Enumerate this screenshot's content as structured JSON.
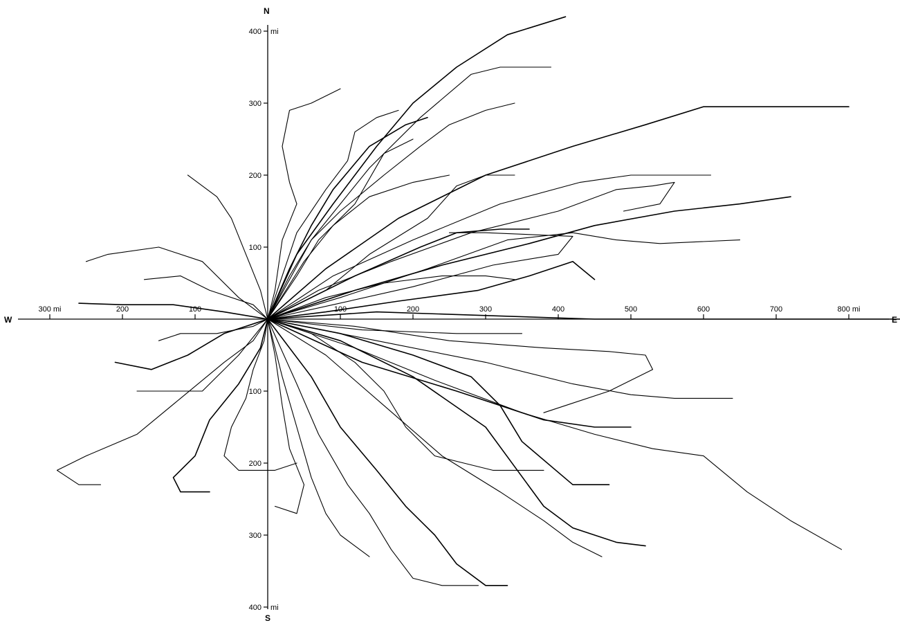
{
  "compass": {
    "north": "N",
    "south": "S",
    "west": "W",
    "east": "E"
  },
  "x_ticks": [
    {
      "value": -300,
      "label": "300 mi"
    },
    {
      "value": -200,
      "label": "200"
    },
    {
      "value": -100,
      "label": "100"
    },
    {
      "value": 100,
      "label": "100"
    },
    {
      "value": 200,
      "label": "200"
    },
    {
      "value": 300,
      "label": "300"
    },
    {
      "value": 400,
      "label": "400"
    },
    {
      "value": 500,
      "label": "500"
    },
    {
      "value": 600,
      "label": "600"
    },
    {
      "value": 700,
      "label": "700"
    },
    {
      "value": 800,
      "label": "800 mi"
    }
  ],
  "y_ticks": [
    {
      "value": 400,
      "label": "400",
      "unit": "mi"
    },
    {
      "value": 300,
      "label": "300",
      "unit": ""
    },
    {
      "value": 200,
      "label": "200",
      "unit": ""
    },
    {
      "value": 100,
      "label": "100",
      "unit": ""
    },
    {
      "value": -100,
      "label": "100",
      "unit": ""
    },
    {
      "value": -200,
      "label": "200",
      "unit": ""
    },
    {
      "value": -300,
      "label": "300",
      "unit": ""
    },
    {
      "value": -400,
      "label": "400",
      "unit": "mi"
    }
  ],
  "colors": {
    "ink": "#000000",
    "background": "#ffffff"
  },
  "tracks": [
    [
      [
        0,
        0
      ],
      [
        40,
        90
      ],
      [
        90,
        160
      ],
      [
        150,
        240
      ],
      [
        200,
        300
      ],
      [
        260,
        350
      ],
      [
        330,
        395
      ],
      [
        410,
        420
      ]
    ],
    [
      [
        0,
        0
      ],
      [
        60,
        110
      ],
      [
        140,
        210
      ],
      [
        210,
        280
      ],
      [
        280,
        340
      ],
      [
        320,
        350
      ],
      [
        390,
        350
      ]
    ],
    [
      [
        0,
        0
      ],
      [
        30,
        60
      ],
      [
        60,
        110
      ],
      [
        100,
        150
      ],
      [
        160,
        200
      ],
      [
        210,
        240
      ],
      [
        250,
        270
      ],
      [
        300,
        290
      ],
      [
        340,
        300
      ]
    ],
    [
      [
        0,
        0
      ],
      [
        80,
        70
      ],
      [
        180,
        140
      ],
      [
        300,
        200
      ],
      [
        420,
        240
      ],
      [
        520,
        270
      ],
      [
        600,
        295
      ],
      [
        700,
        295
      ],
      [
        800,
        295
      ]
    ],
    [
      [
        0,
        0
      ],
      [
        90,
        60
      ],
      [
        200,
        110
      ],
      [
        320,
        160
      ],
      [
        430,
        190
      ],
      [
        500,
        200
      ],
      [
        560,
        200
      ],
      [
        610,
        200
      ]
    ],
    [
      [
        0,
        0
      ],
      [
        70,
        40
      ],
      [
        170,
        80
      ],
      [
        280,
        120
      ],
      [
        400,
        150
      ],
      [
        480,
        180
      ],
      [
        530,
        185
      ],
      [
        560,
        190
      ],
      [
        540,
        160
      ],
      [
        490,
        150
      ]
    ],
    [
      [
        0,
        0
      ],
      [
        120,
        40
      ],
      [
        240,
        75
      ],
      [
        360,
        105
      ],
      [
        450,
        130
      ],
      [
        560,
        150
      ],
      [
        650,
        160
      ],
      [
        720,
        170
      ]
    ],
    [
      [
        0,
        0
      ],
      [
        100,
        30
      ],
      [
        220,
        70
      ],
      [
        330,
        110
      ],
      [
        420,
        120
      ],
      [
        480,
        110
      ],
      [
        540,
        105
      ],
      [
        650,
        110
      ]
    ],
    [
      [
        0,
        0
      ],
      [
        90,
        20
      ],
      [
        200,
        45
      ],
      [
        310,
        75
      ],
      [
        400,
        90
      ],
      [
        420,
        115
      ],
      [
        300,
        120
      ],
      [
        250,
        120
      ]
    ],
    [
      [
        0,
        0
      ],
      [
        80,
        10
      ],
      [
        180,
        25
      ],
      [
        290,
        40
      ],
      [
        360,
        60
      ],
      [
        420,
        80
      ],
      [
        450,
        55
      ]
    ],
    [
      [
        0,
        0
      ],
      [
        -10,
        40
      ],
      [
        -30,
        90
      ],
      [
        -50,
        140
      ],
      [
        -70,
        170
      ],
      [
        -110,
        200
      ]
    ],
    [
      [
        0,
        0
      ],
      [
        -20,
        20
      ],
      [
        -80,
        40
      ],
      [
        -120,
        60
      ],
      [
        -170,
        55
      ]
    ],
    [
      [
        0,
        0
      ],
      [
        -60,
        10
      ],
      [
        -130,
        20
      ],
      [
        -200,
        20
      ],
      [
        -260,
        22
      ]
    ],
    [
      [
        0,
        0
      ],
      [
        -40,
        30
      ],
      [
        -90,
        80
      ],
      [
        -150,
        100
      ],
      [
        -220,
        90
      ],
      [
        -250,
        80
      ]
    ],
    [
      [
        0,
        0
      ],
      [
        10,
        40
      ],
      [
        20,
        110
      ],
      [
        40,
        160
      ],
      [
        30,
        190
      ],
      [
        20,
        240
      ],
      [
        30,
        290
      ],
      [
        60,
        300
      ],
      [
        100,
        320
      ]
    ],
    [
      [
        0,
        0
      ],
      [
        30,
        70
      ],
      [
        60,
        130
      ],
      [
        90,
        180
      ],
      [
        140,
        240
      ],
      [
        190,
        270
      ],
      [
        220,
        280
      ]
    ],
    [
      [
        0,
        0
      ],
      [
        40,
        60
      ],
      [
        70,
        110
      ],
      [
        120,
        160
      ],
      [
        160,
        230
      ],
      [
        200,
        250
      ]
    ],
    [
      [
        0,
        0
      ],
      [
        80,
        40
      ],
      [
        140,
        90
      ],
      [
        220,
        140
      ],
      [
        260,
        185
      ],
      [
        300,
        200
      ],
      [
        340,
        200
      ]
    ],
    [
      [
        0,
        0
      ],
      [
        100,
        -30
      ],
      [
        200,
        -80
      ],
      [
        300,
        -150
      ],
      [
        380,
        -260
      ],
      [
        420,
        -290
      ],
      [
        480,
        -310
      ],
      [
        520,
        -315
      ]
    ],
    [
      [
        0,
        0
      ],
      [
        120,
        -40
      ],
      [
        230,
        -85
      ],
      [
        350,
        -130
      ],
      [
        450,
        -160
      ],
      [
        530,
        -180
      ],
      [
        600,
        -190
      ],
      [
        660,
        -240
      ],
      [
        720,
        -280
      ],
      [
        790,
        -320
      ]
    ],
    [
      [
        0,
        0
      ],
      [
        80,
        -50
      ],
      [
        160,
        -120
      ],
      [
        240,
        -190
      ],
      [
        320,
        -240
      ],
      [
        380,
        -280
      ],
      [
        420,
        -310
      ],
      [
        460,
        -330
      ]
    ],
    [
      [
        0,
        0
      ],
      [
        60,
        -80
      ],
      [
        100,
        -150
      ],
      [
        150,
        -210
      ],
      [
        190,
        -260
      ],
      [
        230,
        -300
      ],
      [
        260,
        -340
      ],
      [
        300,
        -370
      ],
      [
        330,
        -370
      ]
    ],
    [
      [
        0,
        0
      ],
      [
        40,
        -90
      ],
      [
        70,
        -160
      ],
      [
        110,
        -230
      ],
      [
        140,
        -270
      ],
      [
        170,
        -320
      ],
      [
        200,
        -360
      ],
      [
        240,
        -370
      ],
      [
        290,
        -370
      ]
    ],
    [
      [
        0,
        0
      ],
      [
        20,
        -80
      ],
      [
        40,
        -150
      ],
      [
        60,
        -220
      ],
      [
        80,
        -270
      ],
      [
        100,
        -300
      ],
      [
        140,
        -330
      ]
    ],
    [
      [
        0,
        0
      ],
      [
        130,
        -60
      ],
      [
        260,
        -100
      ],
      [
        380,
        -140
      ],
      [
        450,
        -150
      ],
      [
        500,
        -150
      ]
    ],
    [
      [
        0,
        0
      ],
      [
        150,
        -30
      ],
      [
        300,
        -60
      ],
      [
        420,
        -90
      ],
      [
        500,
        -105
      ],
      [
        560,
        -110
      ],
      [
        640,
        -110
      ]
    ],
    [
      [
        0,
        0
      ],
      [
        120,
        -10
      ],
      [
        250,
        -30
      ],
      [
        380,
        -40
      ],
      [
        470,
        -45
      ],
      [
        520,
        -50
      ],
      [
        530,
        -70
      ],
      [
        470,
        -100
      ],
      [
        410,
        -120
      ],
      [
        380,
        -130
      ]
    ],
    [
      [
        0,
        0
      ],
      [
        100,
        -20
      ],
      [
        200,
        -50
      ],
      [
        280,
        -80
      ],
      [
        320,
        -120
      ],
      [
        350,
        -170
      ],
      [
        420,
        -230
      ],
      [
        470,
        -230
      ]
    ],
    [
      [
        0,
        0
      ],
      [
        60,
        -20
      ],
      [
        120,
        -60
      ],
      [
        160,
        -100
      ],
      [
        190,
        -150
      ],
      [
        230,
        -190
      ],
      [
        270,
        -200
      ],
      [
        310,
        -210
      ],
      [
        380,
        -210
      ]
    ],
    [
      [
        0,
        0
      ],
      [
        -20,
        -30
      ],
      [
        -60,
        -60
      ],
      [
        -120,
        -110
      ],
      [
        -180,
        -160
      ],
      [
        -250,
        -190
      ],
      [
        -290,
        -210
      ],
      [
        -260,
        -230
      ],
      [
        -230,
        -230
      ]
    ],
    [
      [
        0,
        0
      ],
      [
        -10,
        -40
      ],
      [
        -40,
        -90
      ],
      [
        -80,
        -140
      ],
      [
        -100,
        -190
      ],
      [
        -130,
        -220
      ],
      [
        -120,
        -240
      ],
      [
        -80,
        -240
      ]
    ],
    [
      [
        0,
        0
      ],
      [
        -5,
        -30
      ],
      [
        -20,
        -70
      ],
      [
        -30,
        -110
      ],
      [
        -50,
        -150
      ],
      [
        -60,
        -190
      ],
      [
        -40,
        -210
      ],
      [
        10,
        -210
      ],
      [
        40,
        -200
      ]
    ],
    [
      [
        0,
        0
      ],
      [
        10,
        -50
      ],
      [
        20,
        -120
      ],
      [
        30,
        -180
      ],
      [
        50,
        -230
      ],
      [
        40,
        -270
      ],
      [
        10,
        -260
      ]
    ],
    [
      [
        0,
        0
      ],
      [
        -60,
        -20
      ],
      [
        -110,
        -50
      ],
      [
        -160,
        -70
      ],
      [
        -210,
        -60
      ]
    ],
    [
      [
        0,
        0
      ],
      [
        -40,
        -50
      ],
      [
        -90,
        -100
      ],
      [
        -140,
        -100
      ],
      [
        -180,
        -100
      ]
    ],
    [
      [
        0,
        0
      ],
      [
        -20,
        -10
      ],
      [
        -70,
        -20
      ],
      [
        -120,
        -20
      ],
      [
        -150,
        -30
      ]
    ],
    [
      [
        0,
        0
      ],
      [
        150,
        10
      ],
      [
        300,
        5
      ],
      [
        450,
        0
      ],
      [
        600,
        0
      ],
      [
        750,
        0
      ],
      [
        890,
        0
      ]
    ],
    [
      [
        0,
        0
      ],
      [
        130,
        -15
      ],
      [
        260,
        -20
      ],
      [
        350,
        -20
      ]
    ],
    [
      [
        0,
        0
      ],
      [
        80,
        30
      ],
      [
        160,
        50
      ],
      [
        240,
        60
      ],
      [
        300,
        60
      ],
      [
        340,
        55
      ]
    ],
    [
      [
        0,
        0
      ],
      [
        120,
        60
      ],
      [
        210,
        100
      ],
      [
        260,
        120
      ],
      [
        320,
        125
      ],
      [
        360,
        125
      ]
    ],
    [
      [
        0,
        0
      ],
      [
        50,
        80
      ],
      [
        90,
        130
      ],
      [
        140,
        170
      ],
      [
        200,
        190
      ],
      [
        250,
        200
      ]
    ],
    [
      [
        0,
        0
      ],
      [
        20,
        60
      ],
      [
        40,
        120
      ],
      [
        80,
        180
      ],
      [
        110,
        220
      ],
      [
        120,
        260
      ],
      [
        150,
        280
      ],
      [
        180,
        290
      ]
    ]
  ]
}
